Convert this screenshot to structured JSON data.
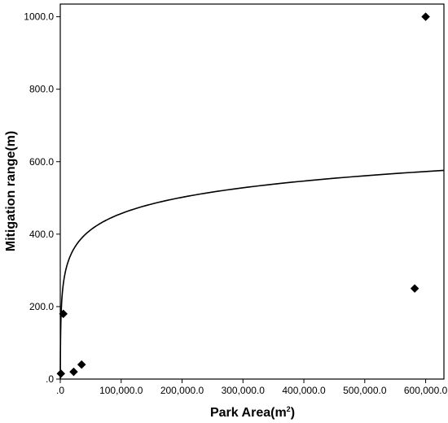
{
  "chart_data": {
    "type": "scatter",
    "title": "",
    "xlabel_base": "Park Area(m",
    "xlabel_sup": "2",
    "xlabel_end": ")",
    "ylabel": "Mitigation range(m)",
    "xlim": [
      0,
      630000
    ],
    "ylim": [
      0,
      1035
    ],
    "x_ticks": [
      0,
      100000,
      200000,
      300000,
      400000,
      500000,
      600000
    ],
    "x_tick_labels": [
      ".0",
      "100,000.0",
      "200,000.0",
      "300,000.0",
      "400,000.0",
      "500,000.0",
      "600,000.0"
    ],
    "y_ticks": [
      0,
      200,
      400,
      600,
      800,
      1000
    ],
    "y_tick_labels": [
      ".0",
      "200.0",
      "400.0",
      "600.0",
      "800.0",
      "1000.0"
    ],
    "grid": false,
    "series": [
      {
        "points": [
          {
            "x": 1000,
            "y": 15
          },
          {
            "x": 5000,
            "y": 180
          },
          {
            "x": 22000,
            "y": 20
          },
          {
            "x": 35000,
            "y": 40
          },
          {
            "x": 582000,
            "y": 250
          },
          {
            "x": 600000,
            "y": 1000
          }
        ]
      }
    ],
    "fit_curve": {
      "type": "logarithmic",
      "a": -289.03,
      "b": 64.78
    }
  }
}
